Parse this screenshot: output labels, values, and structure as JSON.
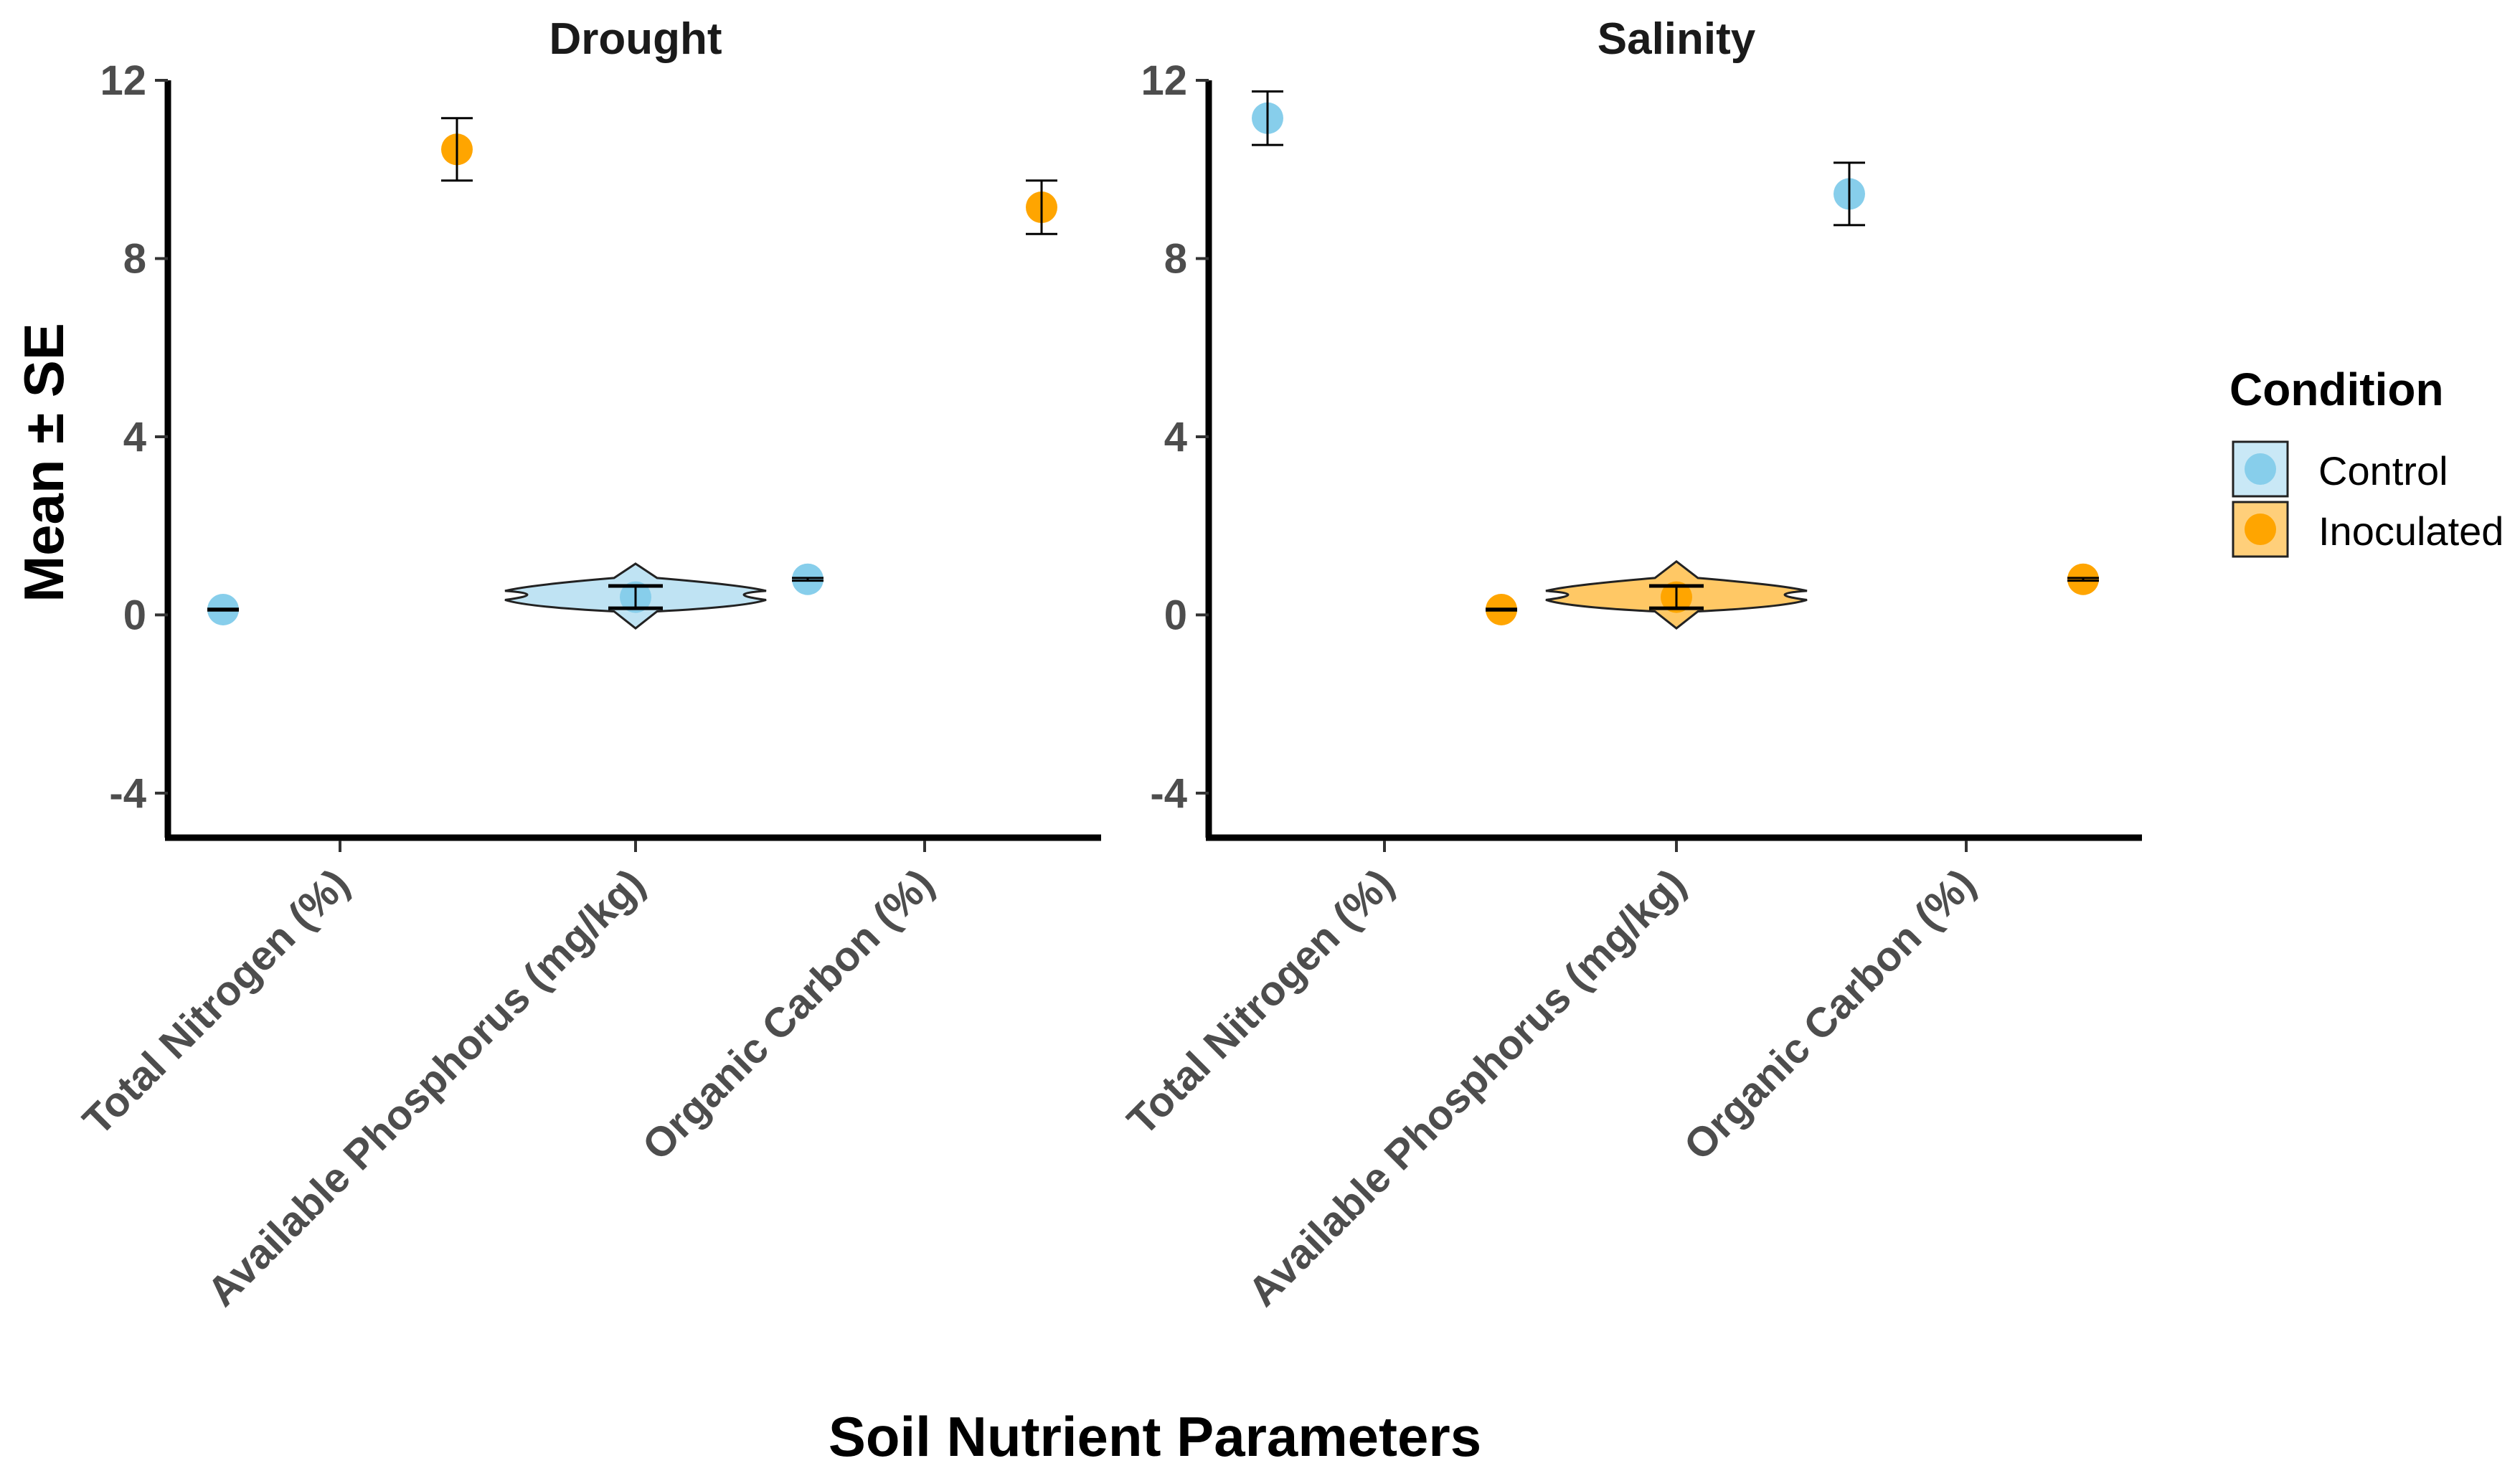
{
  "chart_data": {
    "type": "scatter",
    "ylabel": "Mean ± SE",
    "xlabel": "Soil Nutrient Parameters",
    "ylim": [
      -5,
      12
    ],
    "yticks": [
      -4,
      0,
      4,
      8,
      12
    ],
    "ytick_labels": [
      "-4",
      "0",
      "4",
      "8",
      "12"
    ],
    "categories": [
      "Total Nitrogen (%)",
      "Available Phosphorus (mg/kg)",
      "Organic Carbon (%)"
    ],
    "legend": {
      "title": "Condition",
      "position": "right",
      "entries": [
        {
          "name": "Control",
          "color": "#87CEEB"
        },
        {
          "name": "Inoculated",
          "color": "#FFA500"
        }
      ]
    },
    "panels": [
      {
        "title": "Drought",
        "points": [
          {
            "category": "Total Nitrogen (%)",
            "series": "Control",
            "mean": 0.12,
            "se": 0.02
          },
          {
            "category": "Total Nitrogen (%)",
            "series": "Inoculated",
            "mean": 10.45,
            "se": 0.7
          },
          {
            "category": "Available Phosphorus (mg/kg)",
            "series": "Control",
            "mean": 0.4,
            "se": 0.25
          },
          {
            "category": "Organic Carbon (%)",
            "series": "Control",
            "mean": 0.8,
            "se": 0.03
          },
          {
            "category": "Organic Carbon (%)",
            "series": "Inoculated",
            "mean": 9.15,
            "se": 0.6
          }
        ],
        "violins": [
          {
            "category": "Available Phosphorus (mg/kg)",
            "series": "Control",
            "min": -0.3,
            "max": 1.15,
            "center": 0.42
          }
        ]
      },
      {
        "title": "Salinity",
        "points": [
          {
            "category": "Total Nitrogen (%)",
            "series": "Control",
            "mean": 11.15,
            "se": 0.6
          },
          {
            "category": "Total Nitrogen (%)",
            "series": "Inoculated",
            "mean": 0.12,
            "se": 0.02
          },
          {
            "category": "Available Phosphorus (mg/kg)",
            "series": "Inoculated",
            "mean": 0.4,
            "se": 0.25
          },
          {
            "category": "Organic Carbon (%)",
            "series": "Control",
            "mean": 9.45,
            "se": 0.7
          },
          {
            "category": "Organic Carbon (%)",
            "series": "Inoculated",
            "mean": 0.8,
            "se": 0.03
          }
        ],
        "violins": [
          {
            "category": "Available Phosphorus (mg/kg)",
            "series": "Inoculated",
            "min": -0.3,
            "max": 1.2,
            "center": 0.42
          }
        ]
      }
    ]
  }
}
